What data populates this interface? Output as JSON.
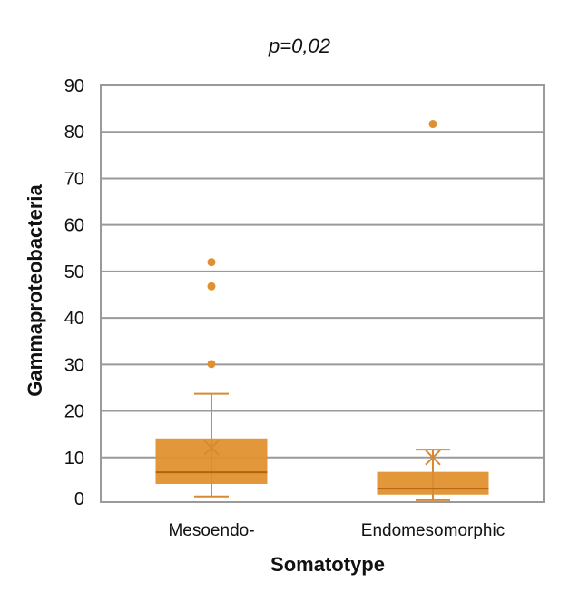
{
  "chart_data": {
    "type": "box",
    "title": "p=0,02",
    "xlabel": "Somatotype",
    "ylabel": "Gammaproteobacteria",
    "ylim": [
      0,
      90
    ],
    "yticks": [
      0,
      10,
      20,
      30,
      40,
      50,
      60,
      70,
      80,
      90
    ],
    "grid": true,
    "categories": [
      "Mesoendo-",
      "Endomesomorphic"
    ],
    "series": [
      {
        "name": "Mesoendo-",
        "whisker_low": 1.6,
        "q1": 4.3,
        "median": 6.8,
        "q3": 14.1,
        "whisker_high": 23.7,
        "mean": 12.1,
        "outliers": [
          30.1,
          46.8,
          52.0
        ]
      },
      {
        "name": "Endomesomorphic",
        "whisker_low": 0.8,
        "q1": 2.0,
        "median": 3.3,
        "q3": 6.9,
        "whisker_high": 11.7,
        "mean": 10.0,
        "outliers": [
          81.7
        ]
      }
    ],
    "colors": {
      "box": "#E0912F",
      "median": "#B5620E",
      "whisker": "#D68A35",
      "grid": "#9A9A9A"
    }
  }
}
